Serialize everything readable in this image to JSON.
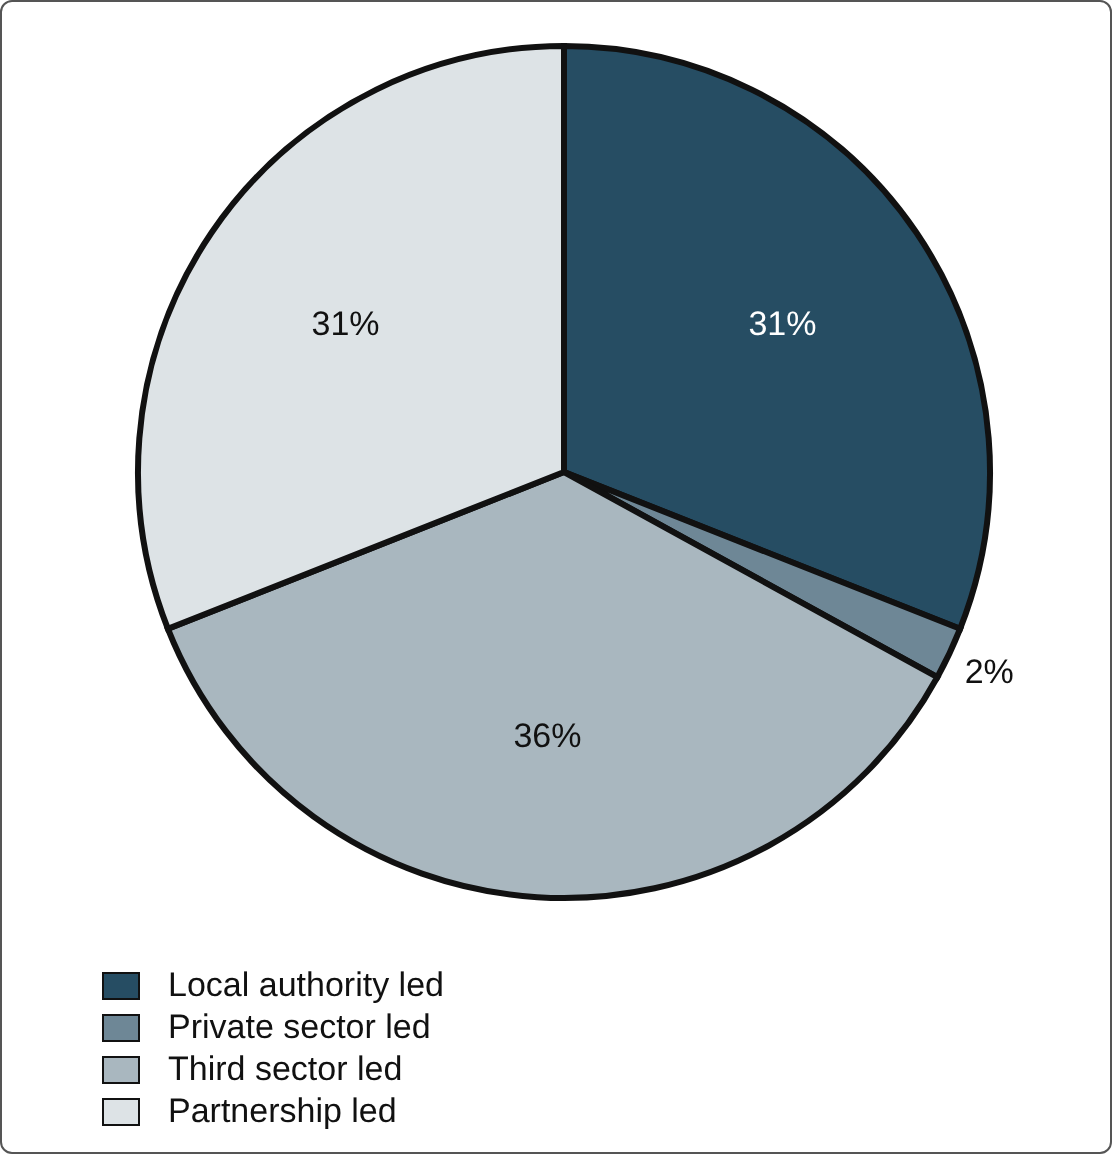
{
  "chart_data": {
    "type": "pie",
    "categories": [
      "Local authority led",
      "Private sector led",
      "Third sector led",
      "Partnership led"
    ],
    "values": [
      31,
      2,
      36,
      31
    ],
    "colors": [
      "#264d63",
      "#6e8796",
      "#a9b7bf",
      "#dde3e6"
    ],
    "value_labels": [
      "31%",
      "2%",
      "36%",
      "31%"
    ],
    "legend": "bottom left"
  }
}
